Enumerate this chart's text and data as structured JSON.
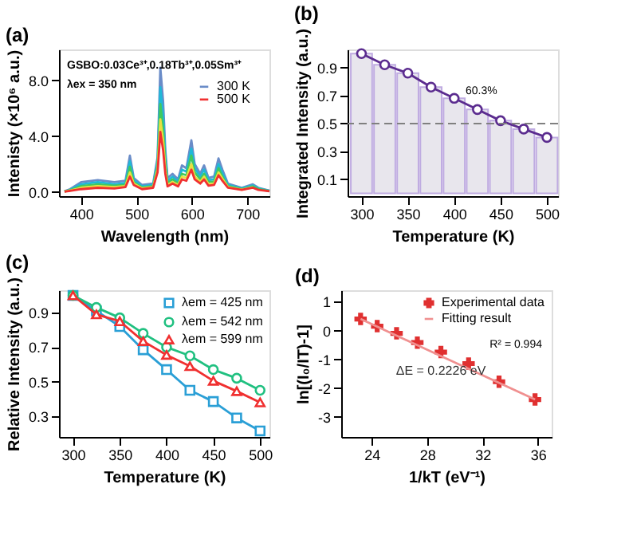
{
  "chart_data": [
    {
      "type": "line",
      "title": "(a)",
      "xlabel": "Wavelength (nm)",
      "ylabel": "Intenisty (×10⁶ a.u.)",
      "annotations": [
        "GSBO:0.03Ce³⁺,0.18Tb³⁺,0.05Sm³⁺",
        "λex = 350 nm"
      ],
      "x": [
        370,
        380,
        400,
        430,
        460,
        480,
        488,
        495,
        510,
        530,
        538,
        543,
        548,
        552,
        556,
        565,
        575,
        582,
        590,
        599,
        605,
        615,
        622,
        630,
        640,
        648,
        655,
        665,
        690,
        710,
        720,
        740
      ],
      "xlim": [
        360,
        740
      ],
      "xticks": [
        400,
        500,
        600,
        700
      ],
      "ylim": [
        -0.3,
        10.2
      ],
      "yticks": [
        {
          "value": 0,
          "label": "0.0"
        },
        {
          "value": 4,
          "label": "4.0"
        },
        {
          "value": 8,
          "label": "8.0"
        }
      ],
      "grid": false,
      "legend": "right",
      "marker": "none",
      "line_style": "solid",
      "series": [
        {
          "name": "300 K",
          "color": "#6a8cc8",
          "values": [
            0.05,
            0.2,
            0.7,
            0.85,
            0.7,
            0.8,
            2.6,
            1.0,
            0.5,
            0.6,
            2.5,
            8.9,
            6.5,
            3.0,
            1.0,
            1.3,
            0.9,
            1.9,
            1.7,
            3.7,
            2.0,
            1.3,
            1.9,
            1.0,
            1.1,
            2.4,
            1.6,
            0.6,
            0.3,
            0.55,
            0.3,
            0.1
          ]
        },
        {
          "color": "#20b8d8",
          "values": [
            0.04,
            0.15,
            0.55,
            0.7,
            0.55,
            0.65,
            2.2,
            0.85,
            0.4,
            0.5,
            2.2,
            7.5,
            5.4,
            2.5,
            0.8,
            1.1,
            0.75,
            1.6,
            1.45,
            3.1,
            1.7,
            1.1,
            1.6,
            0.85,
            0.9,
            2.0,
            1.35,
            0.5,
            0.25,
            0.47,
            0.25,
            0.08
          ]
        },
        {
          "color": "#40c860",
          "values": [
            0.03,
            0.12,
            0.42,
            0.55,
            0.45,
            0.52,
            1.8,
            0.7,
            0.32,
            0.42,
            1.9,
            6.3,
            4.5,
            2.0,
            0.65,
            0.9,
            0.6,
            1.3,
            1.2,
            2.6,
            1.4,
            0.9,
            1.3,
            0.7,
            0.75,
            1.7,
            1.1,
            0.42,
            0.2,
            0.4,
            0.2,
            0.07
          ]
        },
        {
          "color": "#e8e040",
          "values": [
            0.03,
            0.1,
            0.3,
            0.42,
            0.35,
            0.42,
            1.4,
            0.6,
            0.26,
            0.35,
            1.6,
            5.2,
            3.7,
            1.6,
            0.5,
            0.72,
            0.5,
            1.1,
            1.0,
            2.0,
            1.1,
            0.72,
            1.1,
            0.55,
            0.6,
            1.4,
            0.95,
            0.35,
            0.17,
            0.34,
            null,
            null
          ]
        },
        {
          "name": "500 K",
          "color": "#f03030",
          "values": [
            0.02,
            0.08,
            0.2,
            0.3,
            0.25,
            0.35,
            1.1,
            0.5,
            0.2,
            0.3,
            1.4,
            4.3,
            3.0,
            1.3,
            0.4,
            0.6,
            0.4,
            0.9,
            0.8,
            1.6,
            0.9,
            0.6,
            0.9,
            0.45,
            0.5,
            1.2,
            0.8,
            0.3,
            0.15,
            0.3,
            0.15,
            0.05
          ]
        }
      ]
    },
    {
      "type": "bar",
      "title": "(b)",
      "xlabel": "Temperature (K)",
      "ylabel": "Integrated Intensity (a.u.)",
      "x": [
        300,
        325,
        350,
        375,
        400,
        425,
        450,
        475,
        500
      ],
      "xlim": [
        285,
        512
      ],
      "xticks": [
        300,
        350,
        400,
        450,
        500
      ],
      "ylim": [
        -0.02,
        1.03
      ],
      "yticks": [
        0.1,
        0.3,
        0.5,
        0.7,
        0.9
      ],
      "grid": false,
      "legend": false,
      "annotations": [
        "60.3%"
      ],
      "ref_lines": [
        {
          "axis": "y",
          "value": 0.5,
          "color": "#808080",
          "line_style": "dashed"
        }
      ],
      "series": [
        {
          "type": "bar",
          "color": "#e6e4ec",
          "values": [
            1.0,
            0.92,
            0.86,
            0.76,
            0.68,
            0.6,
            0.52,
            0.46,
            0.4
          ]
        },
        {
          "type": "line",
          "marker": "circle",
          "color": "#5b2c8f",
          "values": [
            1.0,
            0.92,
            0.86,
            0.76,
            0.68,
            0.6,
            0.52,
            0.46,
            0.4
          ]
        }
      ]
    },
    {
      "type": "line",
      "title": "(c)",
      "xlabel": "Temperature (K)",
      "ylabel": "Relative Intensity (a.u.)",
      "x": [
        300,
        325,
        350,
        375,
        400,
        425,
        450,
        475,
        500
      ],
      "xlim": [
        285,
        510
      ],
      "xticks": [
        300,
        350,
        400,
        450,
        500
      ],
      "ylim": [
        0.18,
        1.03
      ],
      "yticks": [
        0.3,
        0.5,
        0.7,
        0.9
      ],
      "grid": false,
      "legend": "top right",
      "line_style": "solid",
      "series": [
        {
          "name": "λem = 425 nm",
          "marker": "square",
          "color": "#2a9fd6",
          "values": [
            1.0,
            0.91,
            0.82,
            0.685,
            0.57,
            0.45,
            0.385,
            0.29,
            0.215
          ]
        },
        {
          "name": "λem = 542 nm",
          "marker": "circle",
          "color": "#20c080",
          "values": [
            1.0,
            0.93,
            0.87,
            0.78,
            0.7,
            0.65,
            0.57,
            0.52,
            0.45
          ]
        },
        {
          "name": "λem = 599 nm",
          "marker": "triangle",
          "color": "#f03030",
          "values": [
            1.0,
            0.89,
            0.85,
            0.735,
            0.655,
            0.59,
            0.505,
            0.445,
            0.38
          ]
        }
      ]
    },
    {
      "type": "scatter",
      "title": "(d)",
      "xlabel": "1/kT (eV⁻¹)",
      "ylabel": "ln[(I₀/IT)-1]",
      "xlim": [
        21.8,
        37.0
      ],
      "xticks": [
        24,
        28,
        32,
        36
      ],
      "ylim": [
        -3.7,
        1.4
      ],
      "yticks": [
        -3,
        -2,
        -1,
        0,
        1
      ],
      "grid": false,
      "legend": "top right",
      "annotations": [
        "R² = 0.994",
        {
          "text": "ΔE = 0.2226 eV",
          "x": 29.0,
          "y": -0.75
        }
      ],
      "series": [
        {
          "name": "Experimental data",
          "type": "scatter",
          "marker": "cross",
          "color": "#e03030",
          "x": [
            23.2,
            24.4,
            25.8,
            27.3,
            29.0,
            31.0,
            33.2,
            35.8
          ],
          "values": [
            0.4,
            0.15,
            -0.1,
            -0.42,
            -0.75,
            -1.15,
            -1.78,
            -2.4
          ]
        },
        {
          "name": "Fitting result",
          "type": "line",
          "marker": "none",
          "color": "#f09090",
          "x": [
            23.2,
            35.8
          ],
          "values": [
            0.4,
            -2.4
          ]
        }
      ]
    }
  ]
}
